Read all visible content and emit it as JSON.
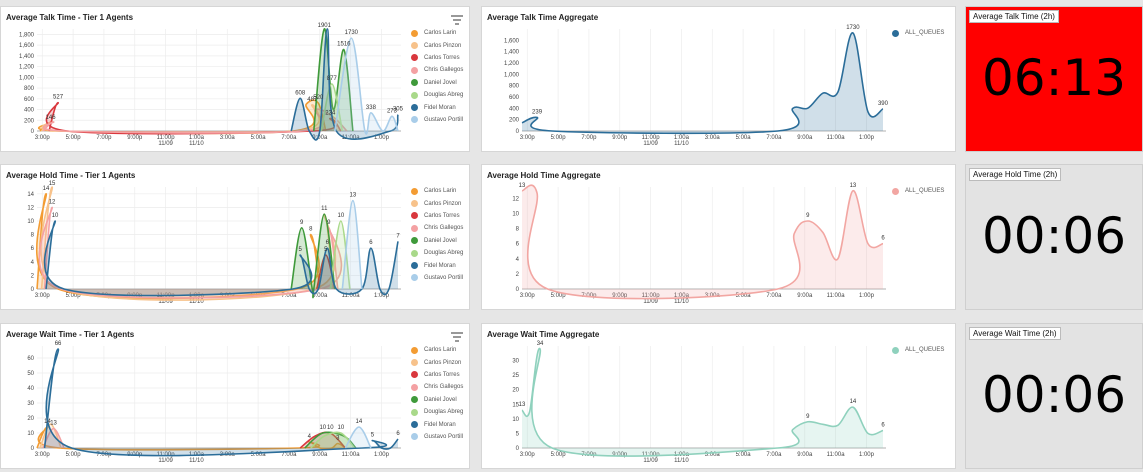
{
  "colors": {
    "accent_red": "#ff0000",
    "panel_bg": "#ffffff",
    "stat_bg": "#e3e3e3",
    "agents": [
      "#f39c33",
      "#f7c28b",
      "#d9373d",
      "#f4a1a3",
      "#3f9a3b",
      "#a9d98a",
      "#2b6d99",
      "#a9cde9"
    ],
    "talk_agg": "#2b6d99",
    "hold_agg": "#f2a6a2",
    "wait_agg": "#8fd1bd"
  },
  "x_ticks": [
    "3:00p",
    "5:00p",
    "7:00p",
    "9:00p",
    "11:00p\n11/09",
    "1:00a\n11/10",
    "3:00a",
    "5:00a",
    "7:00a",
    "9:00a",
    "11:00a",
    "1:00p"
  ],
  "agents": [
    "Carlos Larin",
    "Carlos Pinzon",
    "Carlos Torres",
    "Chris Gallegos",
    "Daniel Jovel",
    "Douglas Abreg",
    "Fidel Moran",
    "Gustavo Portill"
  ],
  "rows": [
    {
      "agents_title": "Average Talk Time - Tier 1 Agents",
      "agg_title": "Average Talk Time Aggregate",
      "agg_legend": "ALL_QUEUES",
      "stat_title": "Average Talk Time (2h)",
      "stat_value": "06:13",
      "stat_red": true
    },
    {
      "agents_title": "Average Hold Time - Tier 1 Agents",
      "agg_title": "Average Hold Time Aggregate",
      "agg_legend": "ALL_QUEUES",
      "stat_title": "Average Hold Time (2h)",
      "stat_value": "00:06",
      "stat_red": false
    },
    {
      "agents_title": "Average Wait Time - Tier 1 Agents",
      "agg_title": "Average Wait Time Aggregate",
      "agg_legend": "ALL_QUEUES",
      "stat_title": "Average Wait Time (2h)",
      "stat_value": "00:06",
      "stat_red": false
    }
  ],
  "chart_data": [
    {
      "type": "area",
      "title": "Average Talk Time - Tier 1 Agents",
      "ylim": [
        0,
        1900
      ],
      "yticks": [
        "0",
        "200",
        "400",
        "600",
        "800",
        "1,000",
        "1,200",
        "1,400",
        "1,600",
        "1,800"
      ],
      "series": [
        {
          "name": "Carlos Larin",
          "points": [
            [
              0.2,
              0
            ],
            [
              0.9,
              146
            ],
            [
              1.4,
              0
            ],
            [
              17,
              0
            ],
            [
              17.9,
              500
            ],
            [
              18.7,
              520
            ],
            [
              19.2,
              0
            ]
          ]
        },
        {
          "name": "Carlos Pinzon",
          "points": [
            [
              0.3,
              0
            ],
            [
              1.0,
              179
            ],
            [
              1.7,
              0
            ],
            [
              17.3,
              0
            ],
            [
              18.3,
              487
            ],
            [
              19.1,
              0
            ]
          ]
        },
        {
          "name": "Carlos Torres",
          "points": [
            [
              0.8,
              0
            ],
            [
              1.4,
              527
            ],
            [
              2.0,
              0
            ],
            [
              18.3,
              0
            ],
            [
              19.5,
              234
            ],
            [
              20.2,
              0
            ]
          ]
        },
        {
          "name": "Chris Gallegos",
          "points": [
            [
              0.4,
              0
            ],
            [
              1.1,
              168
            ],
            [
              1.8,
              0
            ],
            [
              17.6,
              0
            ],
            [
              18.5,
              396
            ],
            [
              19.7,
              260
            ],
            [
              20.6,
              0
            ]
          ]
        },
        {
          "name": "Daniel Jovel",
          "points": [
            [
              18.4,
              0
            ],
            [
              19.1,
              1901
            ],
            [
              19.7,
              400
            ],
            [
              20.4,
              1516
            ],
            [
              21.0,
              0
            ]
          ]
        },
        {
          "name": "Douglas Abreg",
          "points": [
            [
              18.9,
              0
            ],
            [
              19.6,
              877
            ],
            [
              20.3,
              0
            ]
          ]
        },
        {
          "name": "Fidel Moran",
          "points": [
            [
              16.9,
              0
            ],
            [
              17.5,
              608
            ],
            [
              18.1,
              0
            ],
            [
              18.8,
              0
            ],
            [
              19.3,
              1901
            ],
            [
              19.9,
              0
            ],
            [
              23.5,
              0
            ],
            [
              24,
              305
            ]
          ]
        },
        {
          "name": "Gustavo Portill",
          "points": [
            [
              19.8,
              0
            ],
            [
              20.9,
              1730
            ],
            [
              21.8,
              0
            ],
            [
              22.2,
              338
            ],
            [
              23.0,
              0
            ],
            [
              23.6,
              273
            ],
            [
              24,
              0
            ]
          ]
        }
      ],
      "labels": [
        "527",
        "179",
        "168",
        "146",
        "608",
        "487",
        "396",
        "877",
        "1901",
        "1516",
        "234",
        "1730",
        "338",
        "305",
        "273"
      ]
    },
    {
      "type": "area",
      "title": "Average Talk Time Aggregate",
      "ylim": [
        0,
        1800
      ],
      "yticks": [
        "0",
        "200",
        "400",
        "600",
        "800",
        "1,000",
        "1,200",
        "1,400",
        "1,600"
      ],
      "series": [
        {
          "name": "ALL_QUEUES",
          "points": [
            [
              0,
              145
            ],
            [
              1,
              239
            ],
            [
              2,
              0
            ],
            [
              17,
              0
            ],
            [
              18,
              399.13
            ],
            [
              19,
              402.3
            ],
            [
              20,
              667.375
            ],
            [
              21,
              685.6
            ],
            [
              22,
              1730
            ],
            [
              23,
              338
            ],
            [
              24,
              390
            ]
          ]
        }
      ],
      "labels": [
        "145",
        "239",
        "399.133",
        "402.3",
        "667.375",
        "685.6",
        "1730",
        "338",
        "390"
      ]
    },
    {
      "type": "area",
      "title": "Average Hold Time - Tier 1 Agents",
      "ylim": [
        0,
        15
      ],
      "yticks": [
        "0",
        "2",
        "4",
        "6",
        "8",
        "10",
        "12",
        "14"
      ],
      "series": [
        {
          "name": "Carlos Larin",
          "points": [
            [
              0,
              0
            ],
            [
              0.6,
              14
            ],
            [
              1.4,
              0
            ],
            [
              17.3,
              0
            ],
            [
              18.2,
              8
            ],
            [
              18.8,
              0
            ]
          ]
        },
        {
          "name": "Carlos Pinzon",
          "points": [
            [
              0.3,
              0
            ],
            [
              1.0,
              15
            ],
            [
              1.7,
              0
            ],
            [
              18.4,
              0
            ],
            [
              19.1,
              11
            ],
            [
              19.7,
              0
            ]
          ]
        },
        {
          "name": "Carlos Torres",
          "points": [
            [
              18.6,
              0
            ],
            [
              19.2,
              5
            ],
            [
              19.8,
              0
            ]
          ]
        },
        {
          "name": "Chris Gallegos",
          "points": [
            [
              0.5,
              0
            ],
            [
              1.0,
              12
            ],
            [
              1.6,
              0
            ],
            [
              18.8,
              0
            ],
            [
              19.4,
              9
            ],
            [
              20.0,
              0
            ]
          ]
        },
        {
          "name": "Daniel Jovel",
          "points": [
            [
              16.9,
              0
            ],
            [
              17.6,
              9
            ],
            [
              18.3,
              0
            ],
            [
              18.4,
              0
            ],
            [
              19.1,
              11
            ],
            [
              19.8,
              0
            ]
          ]
        },
        {
          "name": "Douglas Abreg",
          "points": [
            [
              19.5,
              0
            ],
            [
              20.2,
              10
            ],
            [
              20.8,
              0
            ]
          ]
        },
        {
          "name": "Fidel Moran",
          "points": [
            [
              0.6,
              0
            ],
            [
              1.2,
              10
            ],
            [
              1.8,
              0
            ],
            [
              17.0,
              0
            ],
            [
              17.5,
              5
            ],
            [
              18.1,
              0
            ],
            [
              18.7,
              0
            ],
            [
              19.3,
              6
            ],
            [
              19.9,
              0
            ],
            [
              21.6,
              0
            ],
            [
              22.2,
              6
            ],
            [
              22.8,
              0
            ],
            [
              23.4,
              0
            ],
            [
              24,
              7
            ]
          ]
        },
        {
          "name": "Gustavo Portill",
          "points": [
            [
              20.3,
              0
            ],
            [
              21.0,
              13
            ],
            [
              21.6,
              0
            ]
          ]
        }
      ],
      "labels": [
        "14",
        "12",
        "10",
        "9",
        "11",
        "11",
        "10",
        "5",
        "7",
        "8",
        "5",
        "13",
        "6",
        "7"
      ]
    },
    {
      "type": "area",
      "title": "Average Hold Time Aggregate",
      "ylim": [
        0,
        13.5
      ],
      "yticks": [
        "0",
        "2",
        "4",
        "6",
        "8",
        "10",
        "12"
      ],
      "series": [
        {
          "name": "ALL_QUEUES",
          "points": [
            [
              0,
              13
            ],
            [
              1,
              12.7
            ],
            [
              1.7,
              0
            ],
            [
              17,
              0
            ],
            [
              18.1,
              7.333
            ],
            [
              19,
              9
            ],
            [
              20,
              7.5
            ],
            [
              21,
              4
            ],
            [
              22,
              13
            ],
            [
              23,
              6
            ],
            [
              24,
              6
            ]
          ]
        }
      ],
      "labels": [
        "7.333",
        "9",
        "7.5",
        "4",
        "13",
        "6",
        "6"
      ]
    },
    {
      "type": "area",
      "title": "Average Wait Time - Tier 1 Agents",
      "ylim": [
        0,
        68
      ],
      "yticks": [
        "0",
        "10",
        "20",
        "30",
        "40",
        "50",
        "60"
      ],
      "series": [
        {
          "name": "Carlos Larin",
          "points": [
            [
              0,
              0
            ],
            [
              0.7,
              14
            ],
            [
              1.5,
              0
            ],
            [
              17.4,
              0
            ],
            [
              18.1,
              4
            ],
            [
              18.8,
              0
            ],
            [
              19.6,
              0
            ],
            [
              20.0,
              3
            ],
            [
              20.5,
              0
            ]
          ]
        },
        {
          "name": "Carlos Pinzon",
          "points": [
            [
              0.2,
              0
            ],
            [
              0.9,
              16
            ],
            [
              1.6,
              0
            ]
          ]
        },
        {
          "name": "Carlos Torres",
          "points": [
            [
              17.5,
              0
            ],
            [
              18.5,
              8
            ],
            [
              19.5,
              10
            ],
            [
              20.5,
              0
            ]
          ]
        },
        {
          "name": "Chris Gallegos",
          "points": [
            [
              0.4,
              0
            ],
            [
              1.1,
              13
            ],
            [
              1.8,
              0
            ]
          ]
        },
        {
          "name": "Daniel Jovel",
          "points": [
            [
              17.8,
              0
            ],
            [
              19.0,
              10
            ],
            [
              20.4,
              8
            ],
            [
              21.2,
              0
            ]
          ]
        },
        {
          "name": "Douglas Abreg",
          "points": [
            [
              18.2,
              0
            ],
            [
              19.1,
              8
            ],
            [
              20.2,
              10
            ],
            [
              21.1,
              0
            ]
          ]
        },
        {
          "name": "Fidel Moran",
          "points": [
            [
              0.5,
              0
            ],
            [
              1.4,
              66
            ],
            [
              2.3,
              0
            ],
            [
              21.6,
              0
            ],
            [
              22.3,
              5
            ],
            [
              22.9,
              0
            ],
            [
              23.5,
              0
            ],
            [
              24,
              6
            ]
          ]
        },
        {
          "name": "Gustavo Portill",
          "points": [
            [
              20.5,
              0
            ],
            [
              21.4,
              14
            ],
            [
              22.2,
              0
            ]
          ]
        }
      ],
      "labels": [
        "14",
        "6",
        "8",
        "10",
        "10",
        "14",
        "14",
        "5",
        "6"
      ]
    },
    {
      "type": "area",
      "title": "Average Wait Time Aggregate",
      "ylim": [
        0,
        35
      ],
      "yticks": [
        "0",
        "5",
        "10",
        "15",
        "20",
        "25",
        "30"
      ],
      "series": [
        {
          "name": "ALL_QUEUES",
          "points": [
            [
              0,
              13
            ],
            [
              0.5,
              12.3
            ],
            [
              1.2,
              34
            ],
            [
              2,
              0
            ],
            [
              17,
              0
            ],
            [
              18,
              6.333
            ],
            [
              19,
              9
            ],
            [
              20,
              8.125
            ],
            [
              21,
              7.8
            ],
            [
              22,
              14
            ],
            [
              23,
              5
            ],
            [
              24,
              6
            ]
          ]
        }
      ],
      "labels": [
        "12.3",
        "6.333",
        "9",
        "8.125",
        "7.8",
        "14",
        "5",
        "6"
      ]
    }
  ]
}
